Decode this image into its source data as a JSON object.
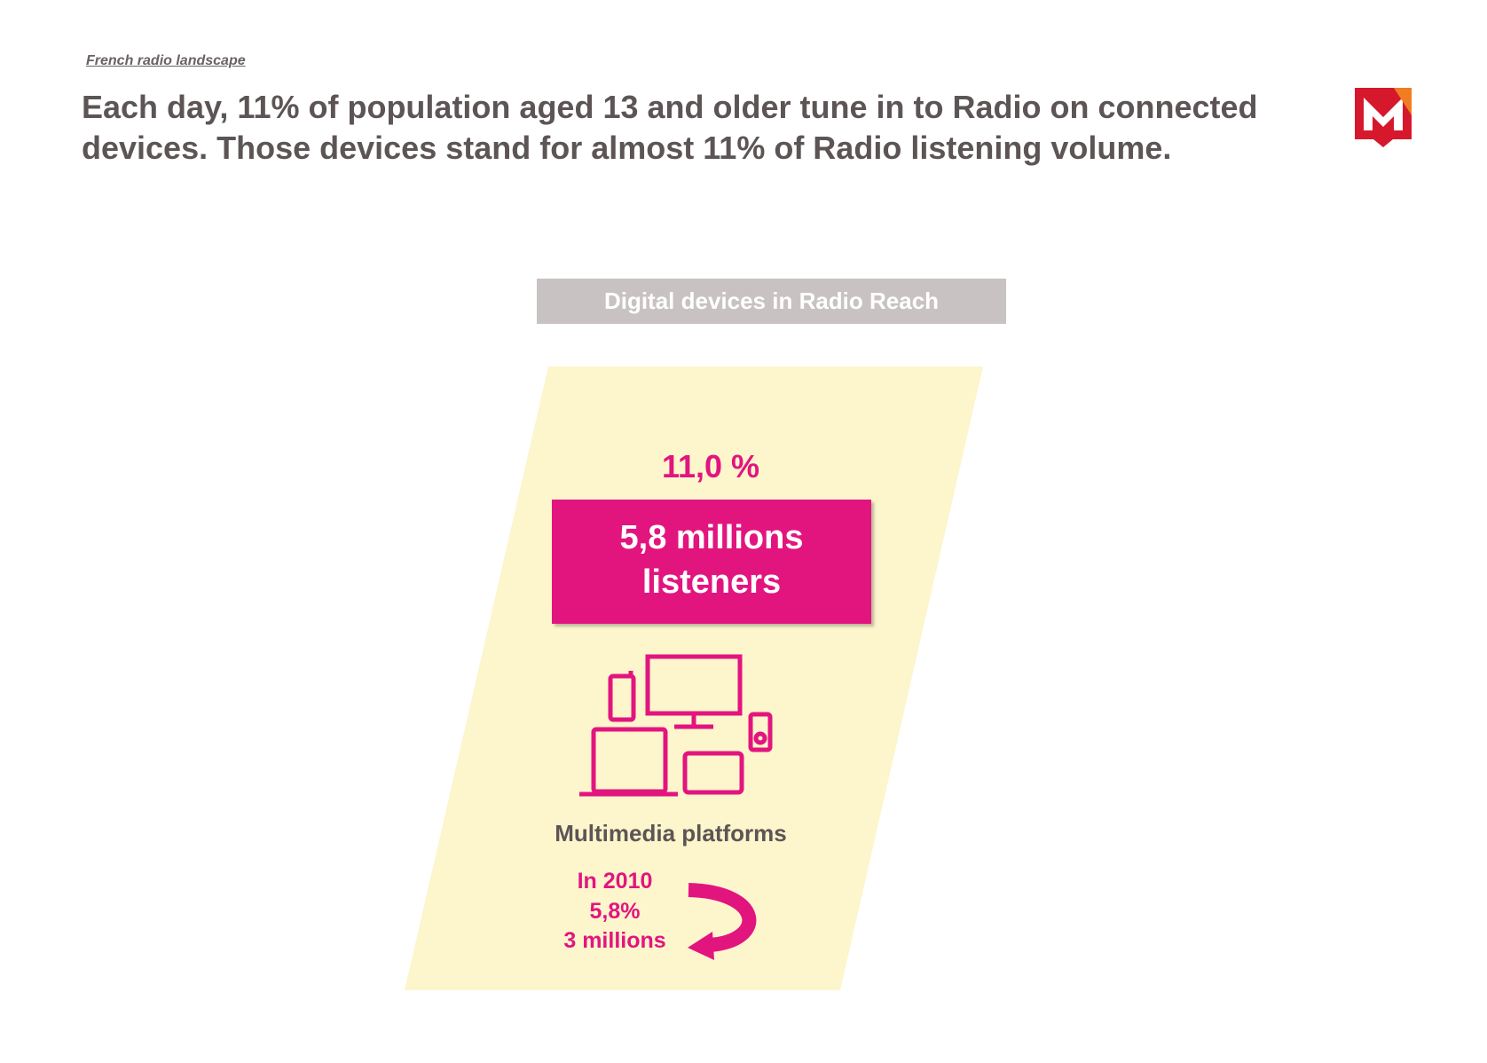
{
  "header": {
    "section": "French radio landscape",
    "title": "Each day, 11% of population aged 13 and older tune in to Radio on connected devices. Those devices stand for almost 11% of Radio listening volume."
  },
  "panel": {
    "heading": "Digital devices in Radio Reach",
    "reach": "11,0 %",
    "listeners": "5,8 millions listeners",
    "platform": "Multimedia platforms",
    "history": {
      "year": "In 2010",
      "reach": "5,8%",
      "listeners": "3 millions"
    }
  }
}
